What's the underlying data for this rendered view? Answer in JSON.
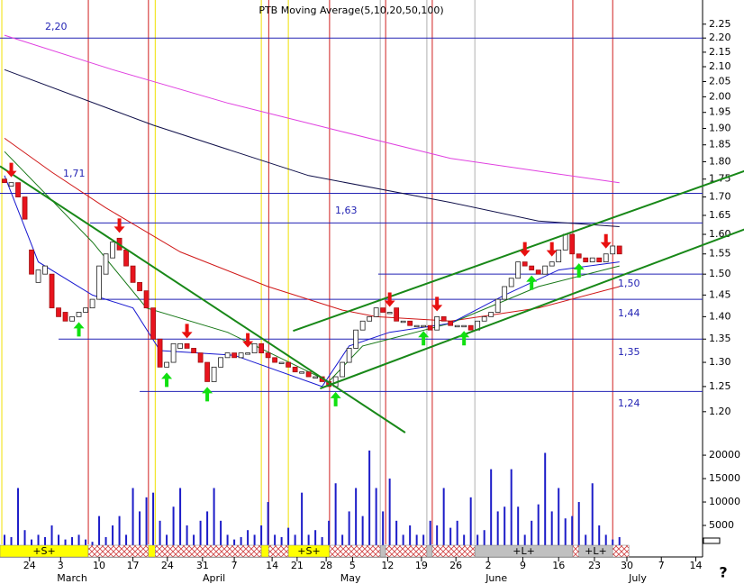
{
  "chart_data": {
    "type": "candlestick",
    "title": "PTB Moving Average(5,10,20,50,100)",
    "log_y": true,
    "xlim": [
      -0.67,
      103.3
    ],
    "ylim": [
      1.16,
      2.34
    ],
    "yticks": [
      {
        "value": 2.25,
        "label": "2.25"
      },
      {
        "value": 2.2,
        "label": "2.20"
      },
      {
        "value": 2.15,
        "label": "2.15"
      },
      {
        "value": 2.1,
        "label": "2.10"
      },
      {
        "value": 2.05,
        "label": "2.05"
      },
      {
        "value": 2.0,
        "label": "2.00"
      },
      {
        "value": 1.95,
        "label": "1.95"
      },
      {
        "value": 1.9,
        "label": "1.90"
      },
      {
        "value": 1.85,
        "label": "1.85"
      },
      {
        "value": 1.8,
        "label": "1.80"
      },
      {
        "value": 1.75,
        "label": "1.75"
      },
      {
        "value": 1.7,
        "label": "1.70"
      },
      {
        "value": 1.65,
        "label": "1.65"
      },
      {
        "value": 1.6,
        "label": "1.60"
      },
      {
        "value": 1.55,
        "label": "1.55"
      },
      {
        "value": 1.5,
        "label": "1.50"
      },
      {
        "value": 1.45,
        "label": "1.45"
      },
      {
        "value": 1.4,
        "label": "1.40"
      },
      {
        "value": 1.35,
        "label": "1.35"
      },
      {
        "value": 1.3,
        "label": "1.30"
      },
      {
        "value": 1.25,
        "label": "1.25"
      },
      {
        "value": 1.2,
        "label": "1.20"
      }
    ],
    "xticks": [
      {
        "value": 3.7,
        "label": "24"
      },
      {
        "value": 8.3,
        "label": "3"
      },
      {
        "value": 14,
        "label": "10"
      },
      {
        "value": 19,
        "label": "17"
      },
      {
        "value": 24.1,
        "label": "24"
      },
      {
        "value": 29.3,
        "label": "31"
      },
      {
        "value": 34,
        "label": "7"
      },
      {
        "value": 39.6,
        "label": "14"
      },
      {
        "value": 43.3,
        "label": "21"
      },
      {
        "value": 47.6,
        "label": "28"
      },
      {
        "value": 51.5,
        "label": "5"
      },
      {
        "value": 56.7,
        "label": "12"
      },
      {
        "value": 61.7,
        "label": "19"
      },
      {
        "value": 66.8,
        "label": "26"
      },
      {
        "value": 71.6,
        "label": "2"
      },
      {
        "value": 76.7,
        "label": "9"
      },
      {
        "value": 82,
        "label": "16"
      },
      {
        "value": 87.3,
        "label": "23"
      },
      {
        "value": 92.1,
        "label": "30"
      },
      {
        "value": 97.2,
        "label": "7"
      },
      {
        "value": 102.3,
        "label": "14"
      }
    ],
    "month_labels": [
      {
        "value": 10,
        "label": "March"
      },
      {
        "value": 31,
        "label": "April"
      },
      {
        "value": 51.2,
        "label": "May"
      },
      {
        "value": 72.8,
        "label": "June"
      },
      {
        "value": 93.7,
        "label": "July"
      }
    ],
    "open": [
      1.75,
      1.73,
      1.74,
      1.7,
      1.56,
      1.48,
      1.5,
      1.5,
      1.42,
      1.41,
      1.39,
      1.4,
      1.41,
      1.42,
      1.44,
      1.5,
      1.54,
      1.59,
      1.56,
      1.52,
      1.48,
      1.46,
      1.42,
      1.35,
      1.29,
      1.3,
      1.33,
      1.34,
      1.33,
      1.32,
      1.3,
      1.26,
      1.29,
      1.31,
      1.32,
      1.31,
      1.32,
      1.32,
      1.34,
      1.32,
      1.31,
      1.3,
      1.3,
      1.29,
      1.28,
      1.28,
      1.27,
      1.27,
      1.26,
      1.25,
      1.27,
      1.3,
      1.33,
      1.37,
      1.39,
      1.4,
      1.42,
      1.41,
      1.42,
      1.39,
      1.39,
      1.38,
      1.38,
      1.38,
      1.37,
      1.4,
      1.39,
      1.38,
      1.38,
      1.38,
      1.37,
      1.39,
      1.4,
      1.41,
      1.44,
      1.47,
      1.49,
      1.53,
      1.52,
      1.51,
      1.5,
      1.52,
      1.53,
      1.56,
      1.6,
      1.55,
      1.54,
      1.53,
      1.54,
      1.53,
      1.55,
      1.57
    ],
    "close": [
      1.74,
      1.74,
      1.7,
      1.64,
      1.5,
      1.51,
      1.52,
      1.42,
      1.4,
      1.39,
      1.4,
      1.41,
      1.42,
      1.44,
      1.52,
      1.55,
      1.58,
      1.56,
      1.52,
      1.48,
      1.46,
      1.42,
      1.35,
      1.29,
      1.3,
      1.34,
      1.34,
      1.33,
      1.32,
      1.3,
      1.26,
      1.29,
      1.31,
      1.32,
      1.31,
      1.32,
      1.32,
      1.34,
      1.32,
      1.31,
      1.3,
      1.3,
      1.29,
      1.28,
      1.28,
      1.27,
      1.27,
      1.26,
      1.25,
      1.27,
      1.3,
      1.33,
      1.37,
      1.39,
      1.4,
      1.42,
      1.41,
      1.41,
      1.39,
      1.39,
      1.38,
      1.38,
      1.38,
      1.37,
      1.4,
      1.39,
      1.38,
      1.38,
      1.38,
      1.37,
      1.39,
      1.4,
      1.41,
      1.44,
      1.47,
      1.49,
      1.53,
      1.52,
      1.51,
      1.5,
      1.52,
      1.53,
      1.56,
      1.6,
      1.55,
      1.54,
      1.53,
      1.54,
      1.53,
      1.55,
      1.57,
      1.55
    ],
    "up_color": "#ffffff",
    "down_color": "#e8141e",
    "volume": {
      "color": "#1c1cc8",
      "ylim": [
        0,
        22900
      ],
      "yticks": [
        5000,
        10000,
        15000,
        20000
      ],
      "values": [
        3000,
        2500,
        13000,
        4000,
        2000,
        3000,
        2500,
        5000,
        3000,
        2000,
        2500,
        3000,
        2000,
        1500,
        7000,
        2500,
        5000,
        7000,
        3000,
        13000,
        8000,
        11000,
        12000,
        6000,
        3000,
        9000,
        13000,
        5000,
        3000,
        6000,
        8000,
        13000,
        6000,
        3000,
        2000,
        2500,
        4000,
        3000,
        5000,
        10000,
        3000,
        2500,
        4500,
        3000,
        12000,
        3000,
        4000,
        2500,
        6000,
        14000,
        3000,
        8000,
        13000,
        7000,
        21000,
        13000,
        8000,
        15000,
        6000,
        3000,
        5000,
        3000,
        3000,
        6000,
        5000,
        13000,
        4500,
        6000,
        3000,
        11000,
        3000,
        4000,
        17000,
        8000,
        9000,
        17000,
        9000,
        3000,
        6000,
        9500,
        20500,
        8000,
        13000,
        6500,
        7000,
        10000,
        3000,
        14000,
        5000,
        3000,
        2000,
        2500
      ]
    },
    "moving_averages": [
      {
        "color": "#e040e0",
        "x": [
          0,
          16,
          33,
          50,
          66,
          80,
          91
        ],
        "values": [
          2.21,
          2.09,
          1.98,
          1.89,
          1.81,
          1.77,
          1.74
        ]
      },
      {
        "color": "#10104a",
        "x": [
          0,
          22,
          45,
          66,
          79,
          91
        ],
        "values": [
          2.09,
          1.91,
          1.76,
          1.685,
          1.635,
          1.62
        ]
      },
      {
        "color": "#d01818",
        "x": [
          0,
          7,
          15,
          26,
          39,
          50,
          55,
          66,
          79,
          91
        ],
        "values": [
          1.87,
          1.77,
          1.67,
          1.555,
          1.47,
          1.415,
          1.4,
          1.39,
          1.42,
          1.47
        ]
      },
      {
        "color": "#187818",
        "x": [
          0,
          13,
          21,
          33,
          48,
          53,
          66,
          79,
          91
        ],
        "values": [
          1.83,
          1.58,
          1.42,
          1.365,
          1.26,
          1.335,
          1.385,
          1.47,
          1.52
        ]
      },
      {
        "color": "#1818d0",
        "x": [
          0,
          5,
          13,
          19,
          23,
          34,
          47,
          51,
          57,
          66,
          74,
          82,
          91
        ],
        "values": [
          1.76,
          1.53,
          1.45,
          1.42,
          1.325,
          1.315,
          1.25,
          1.335,
          1.365,
          1.385,
          1.45,
          1.51,
          1.53
        ]
      }
    ],
    "trend_lines": [
      {
        "color": "#188818",
        "x": [
          -0.67,
          59.3
        ],
        "values": [
          1.787,
          1.16
        ]
      },
      {
        "color": "#188818",
        "x": [
          42.7,
          109.5
        ],
        "values": [
          1.368,
          1.773
        ]
      },
      {
        "color": "#188818",
        "x": [
          46.7,
          109.5
        ],
        "values": [
          1.246,
          1.613
        ]
      }
    ],
    "levels": [
      {
        "value": 2.2,
        "label": "2,20",
        "from": -0.67
      },
      {
        "value": 1.71,
        "label": "1,71",
        "from": -0.67
      },
      {
        "value": 1.63,
        "label": "1,63",
        "from": 12.67
      },
      {
        "value": 1.5,
        "label": "1,50",
        "from": 55.3
      },
      {
        "value": 1.44,
        "label": "1,44",
        "from": 14
      },
      {
        "value": 1.35,
        "label": "1,35",
        "from": 8
      },
      {
        "value": 1.24,
        "label": "1,24",
        "from": 20
      }
    ],
    "level_color": "#2323b4",
    "vertical_lines": [
      {
        "color": "#d02020",
        "x": [
          12.4,
          21.3,
          39.1,
          48.1,
          56.4,
          63.3,
          84.1,
          90
        ]
      },
      {
        "color": "#f0e000",
        "x": [
          -0.4,
          22.3,
          38,
          42
        ]
      },
      {
        "color": "#b0b0b0",
        "x": [
          55.6,
          62.5,
          69.6
        ]
      }
    ],
    "sell_signals": [
      1,
      17,
      27,
      36,
      57,
      64,
      77,
      81,
      89
    ],
    "buy_signals": [
      11,
      24,
      30,
      49,
      62,
      68,
      78,
      85
    ],
    "sell_color": "#e81010",
    "buy_color": "#10e010",
    "strip": [
      {
        "from": -0.67,
        "to": 12.4,
        "color": "#ffff00",
        "label": "+S+"
      },
      {
        "from": 12.4,
        "to": 21.3,
        "color": "hatch"
      },
      {
        "from": 21.3,
        "to": 22.3,
        "color": "#ffff00"
      },
      {
        "from": 22.3,
        "to": 38,
        "color": "hatch"
      },
      {
        "from": 38,
        "to": 39.1,
        "color": "#ffff00"
      },
      {
        "from": 39.1,
        "to": 42,
        "color": "hatch"
      },
      {
        "from": 42,
        "to": 48.1,
        "color": "#ffff00",
        "label": "+S+"
      },
      {
        "from": 48.1,
        "to": 55.6,
        "color": "hatch"
      },
      {
        "from": 55.6,
        "to": 56.4,
        "color": "#c0c0c0"
      },
      {
        "from": 56.4,
        "to": 62.5,
        "color": "hatch"
      },
      {
        "from": 62.5,
        "to": 63.3,
        "color": "#c0c0c0"
      },
      {
        "from": 63.3,
        "to": 69.6,
        "color": "hatch"
      },
      {
        "from": 69.6,
        "to": 84.1,
        "color": "#c0c0c0",
        "label": "+L+"
      },
      {
        "from": 84.1,
        "to": 85,
        "color": "hatch"
      },
      {
        "from": 85,
        "to": 90,
        "color": "#c0c0c0",
        "label": "+L+"
      },
      {
        "from": 90,
        "to": 92.4,
        "color": "hatch"
      }
    ],
    "help": "?"
  }
}
